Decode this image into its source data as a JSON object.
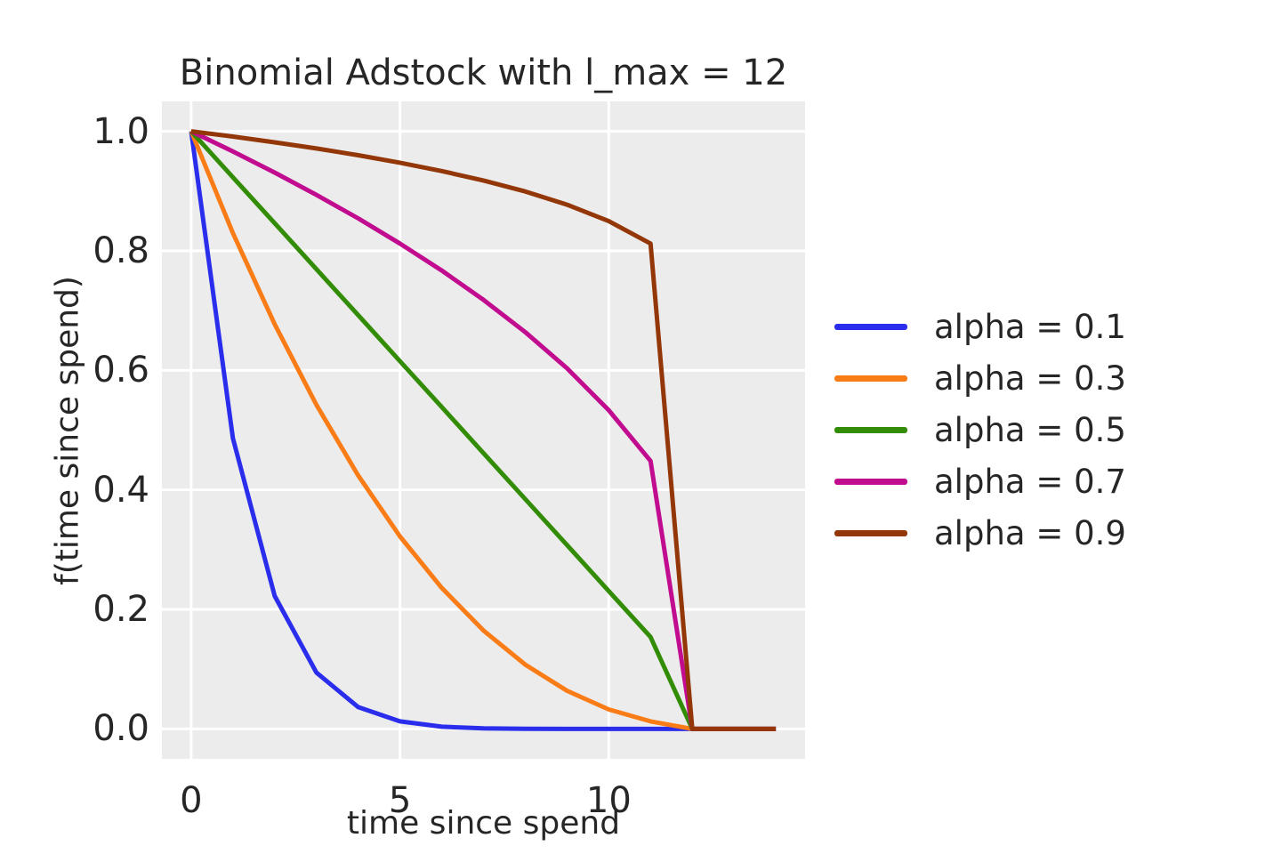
{
  "chart_data": {
    "type": "line",
    "title": "Binomial Adstock with l_max = 12",
    "xlabel": "time since spend",
    "ylabel": "f(time since spend)",
    "plot_bg_color": "#ececec",
    "grid_color": "#ffffff",
    "text_color": "#262626",
    "grid": "on",
    "legend_position": "right-outside",
    "xlim": [
      -0.7,
      14.7
    ],
    "ylim": [
      -0.05,
      1.05
    ],
    "xticks": [
      {
        "value": 0,
        "label": "0"
      },
      {
        "value": 5,
        "label": "5"
      },
      {
        "value": 10,
        "label": "10"
      }
    ],
    "yticks": [
      {
        "value": 0.0,
        "label": "0.0"
      },
      {
        "value": 0.2,
        "label": "0.2"
      },
      {
        "value": 0.4,
        "label": "0.4"
      },
      {
        "value": 0.6,
        "label": "0.6"
      },
      {
        "value": 0.8,
        "label": "0.8"
      },
      {
        "value": 1.0,
        "label": "1.0"
      }
    ],
    "x": [
      0,
      1,
      2,
      3,
      4,
      5,
      6,
      7,
      8,
      9,
      10,
      11,
      12,
      13,
      14
    ],
    "series": [
      {
        "name": "alpha = 0.1",
        "color": "#2a2eec",
        "values": [
          1.0,
          0.4865,
          0.2224,
          0.0942,
          0.0365,
          0.0127,
          0.0038,
          0.001,
          0.0002,
          0.0,
          0.0,
          0.0,
          0.0,
          0.0,
          0.0
        ]
      },
      {
        "name": "alpha = 0.3",
        "color": "#fa7c17",
        "values": [
          1.0,
          0.8297,
          0.6772,
          0.5422,
          0.424,
          0.3221,
          0.2359,
          0.1646,
          0.1076,
          0.0639,
          0.0326,
          0.0127,
          0.0,
          0.0,
          0.0
        ]
      },
      {
        "name": "alpha = 0.5",
        "color": "#328c06",
        "values": [
          1.0,
          0.9231,
          0.8462,
          0.7692,
          0.6923,
          0.6154,
          0.5385,
          0.4615,
          0.3846,
          0.3077,
          0.2308,
          0.1538,
          0.0,
          0.0,
          0.0
        ]
      },
      {
        "name": "alpha = 0.7",
        "color": "#c10c90",
        "values": [
          1.0,
          0.9663,
          0.9309,
          0.8936,
          0.8542,
          0.8121,
          0.767,
          0.7179,
          0.664,
          0.6034,
          0.5334,
          0.4483,
          0.0,
          0.0,
          0.0
        ]
      },
      {
        "name": "alpha = 0.9",
        "color": "#933708",
        "values": [
          1.0,
          0.9912,
          0.9816,
          0.9713,
          0.96,
          0.9475,
          0.9335,
          0.9177,
          0.8993,
          0.8772,
          0.8496,
          0.8122,
          0.0,
          0.0,
          0.0
        ]
      }
    ]
  }
}
